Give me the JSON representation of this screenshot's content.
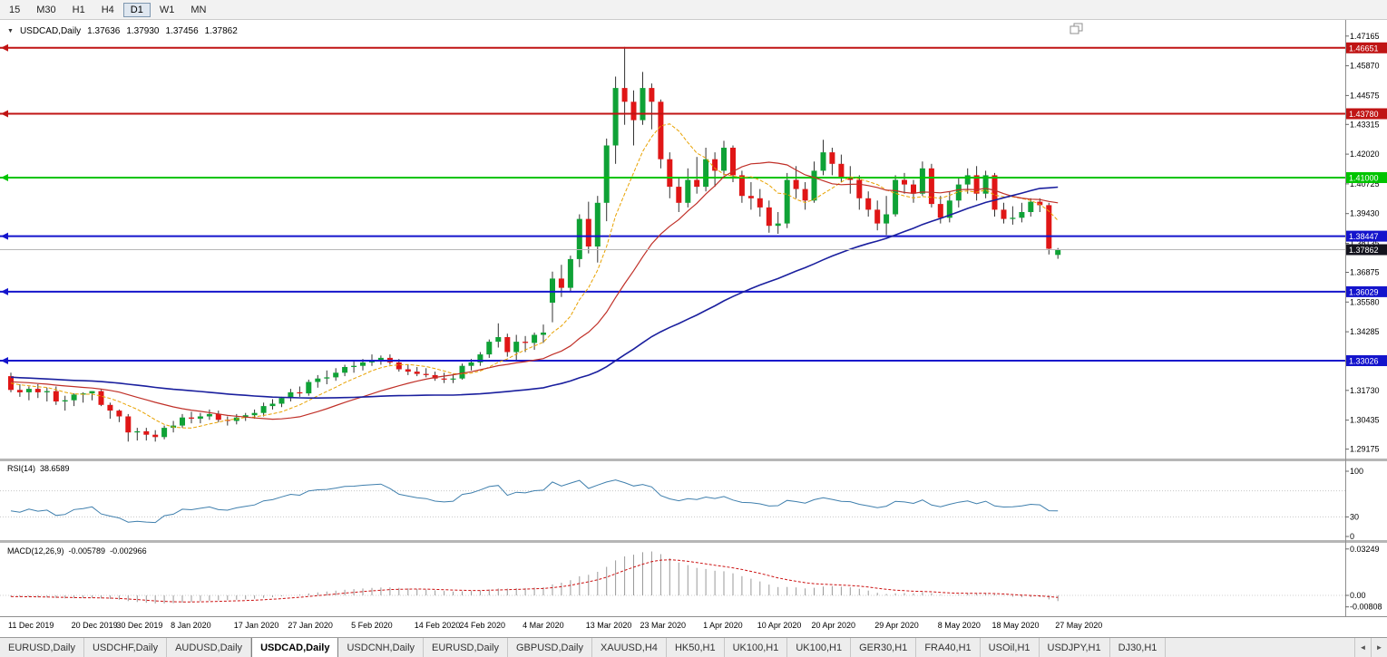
{
  "toolbar": {
    "timeframes": [
      {
        "label": "15",
        "active": false
      },
      {
        "label": "M30",
        "active": false
      },
      {
        "label": "H1",
        "active": false
      },
      {
        "label": "H4",
        "active": false
      },
      {
        "label": "D1",
        "active": true
      },
      {
        "label": "W1",
        "active": false
      },
      {
        "label": "MN",
        "active": false
      }
    ]
  },
  "icons": {
    "collapse_arrow": "▼",
    "tab_scroll_left": "◄",
    "tab_scroll_right": "►",
    "window_restore": "restore"
  },
  "chart": {
    "title": {
      "symbol": "USDCAD,Daily",
      "open": "1.37636",
      "high": "1.37930",
      "low": "1.37456",
      "close": "1.37862"
    },
    "colors": {
      "up": "#0fa236",
      "down": "#e01616",
      "wick": "#333333",
      "ma_fast": "#e8a200",
      "ma_mid": "#c03028",
      "ma_slow": "#1a1f9e"
    },
    "ma_periods": {
      "fast": 8,
      "mid": 20,
      "slow": 55
    },
    "y_axis_ticks": [
      "1.47165",
      "1.45870",
      "1.44575",
      "1.43315",
      "1.42020",
      "1.40725",
      "1.39430",
      "1.38135",
      "1.36875",
      "1.35580",
      "1.34285",
      "1.32990",
      "1.31730",
      "1.30435",
      "1.29175"
    ],
    "levels": [
      {
        "price": 1.46651,
        "label": "1.46651",
        "color": "#c01414"
      },
      {
        "price": 1.4378,
        "label": "1.43780",
        "color": "#c01414"
      },
      {
        "price": 1.41,
        "label": "1.41000",
        "color": "#00c400"
      },
      {
        "price": 1.38447,
        "label": "1.38447",
        "color": "#1414cc"
      },
      {
        "price": 1.36029,
        "label": "1.36029",
        "color": "#1414cc"
      },
      {
        "price": 1.33026,
        "label": "1.33026",
        "color": "#1414cc"
      }
    ],
    "current_price": {
      "value": 1.37862,
      "label": "1.37862",
      "line_color": "#b8b8b8",
      "badge_color": "#14141e"
    },
    "x_axis_labels": [
      {
        "label": "11 Dec 2019",
        "bar": 0
      },
      {
        "label": "20 Dec 2019",
        "bar": 7
      },
      {
        "label": "30 Dec 2019",
        "bar": 12
      },
      {
        "label": "8 Jan 2020",
        "bar": 18
      },
      {
        "label": "17 Jan 2020",
        "bar": 25
      },
      {
        "label": "27 Jan 2020",
        "bar": 31
      },
      {
        "label": "5 Feb 2020",
        "bar": 38
      },
      {
        "label": "14 Feb 2020",
        "bar": 45
      },
      {
        "label": "24 Feb 2020",
        "bar": 50
      },
      {
        "label": "4 Mar 2020",
        "bar": 57
      },
      {
        "label": "13 Mar 2020",
        "bar": 64
      },
      {
        "label": "23 Mar 2020",
        "bar": 70
      },
      {
        "label": "1 Apr 2020",
        "bar": 77
      },
      {
        "label": "10 Apr 2020",
        "bar": 83
      },
      {
        "label": "20 Apr 2020",
        "bar": 89
      },
      {
        "label": "29 Apr 2020",
        "bar": 96
      },
      {
        "label": "8 May 2020",
        "bar": 103
      },
      {
        "label": "18 May 2020",
        "bar": 109
      },
      {
        "label": "27 May 2020",
        "bar": 116
      }
    ],
    "pre_closes": [
      1.33,
      1.3285,
      1.327,
      1.328,
      1.3265,
      1.325,
      1.326,
      1.3245,
      1.323,
      1.324,
      1.3255,
      1.327,
      1.326,
      1.3245,
      1.3235,
      1.3225,
      1.324,
      1.325,
      1.3235,
      1.322,
      1.323,
      1.3245,
      1.326,
      1.325,
      1.324,
      1.3225,
      1.3215,
      1.323,
      1.3245,
      1.3235,
      1.322,
      1.321,
      1.3225,
      1.324,
      1.323,
      1.3215,
      1.3205,
      1.322,
      1.3235,
      1.3225,
      1.321,
      1.32,
      1.3215,
      1.323,
      1.322,
      1.3205,
      1.3195,
      1.321,
      1.3225,
      1.3215,
      1.32,
      1.319,
      1.3205,
      1.322,
      1.321
    ],
    "candles": [
      [
        1.3235,
        1.325,
        1.3165,
        1.3175
      ],
      [
        1.3175,
        1.32,
        1.3145,
        1.3165
      ],
      [
        1.3165,
        1.319,
        1.313,
        1.318
      ],
      [
        1.318,
        1.32,
        1.314,
        1.3165
      ],
      [
        1.3165,
        1.3185,
        1.3125,
        1.317
      ],
      [
        1.317,
        1.319,
        1.311,
        1.3125
      ],
      [
        1.3125,
        1.315,
        1.3085,
        1.313
      ],
      [
        1.313,
        1.316,
        1.3105,
        1.3155
      ],
      [
        1.3155,
        1.3165,
        1.312,
        1.316
      ],
      [
        1.316,
        1.317,
        1.313,
        1.317
      ],
      [
        1.317,
        1.3175,
        1.3105,
        1.311
      ],
      [
        1.311,
        1.312,
        1.305,
        1.3085
      ],
      [
        1.3085,
        1.309,
        1.3035,
        1.306
      ],
      [
        1.306,
        1.307,
        1.295,
        1.299
      ],
      [
        1.299,
        1.301,
        1.2955,
        1.2995
      ],
      [
        1.2995,
        1.301,
        1.2955,
        1.298
      ],
      [
        1.298,
        1.3,
        1.295,
        1.297
      ],
      [
        1.297,
        1.302,
        1.296,
        1.301
      ],
      [
        1.301,
        1.304,
        1.299,
        1.302
      ],
      [
        1.302,
        1.307,
        1.301,
        1.3055
      ],
      [
        1.3055,
        1.308,
        1.303,
        1.305
      ],
      [
        1.305,
        1.3075,
        1.303,
        1.306
      ],
      [
        1.306,
        1.309,
        1.3045,
        1.307
      ],
      [
        1.307,
        1.3085,
        1.3035,
        1.3045
      ],
      [
        1.3045,
        1.306,
        1.302,
        1.304
      ],
      [
        1.304,
        1.307,
        1.3025,
        1.3055
      ],
      [
        1.3055,
        1.3075,
        1.304,
        1.3065
      ],
      [
        1.3065,
        1.309,
        1.305,
        1.3075
      ],
      [
        1.3075,
        1.312,
        1.306,
        1.3105
      ],
      [
        1.3105,
        1.3135,
        1.309,
        1.3115
      ],
      [
        1.3115,
        1.3145,
        1.31,
        1.314
      ],
      [
        1.314,
        1.318,
        1.3125,
        1.3165
      ],
      [
        1.3165,
        1.319,
        1.3145,
        1.316
      ],
      [
        1.316,
        1.322,
        1.315,
        1.321
      ],
      [
        1.321,
        1.324,
        1.3185,
        1.3225
      ],
      [
        1.3225,
        1.326,
        1.32,
        1.323
      ],
      [
        1.323,
        1.327,
        1.3215,
        1.325
      ],
      [
        1.325,
        1.3285,
        1.3235,
        1.3275
      ],
      [
        1.3275,
        1.33,
        1.325,
        1.328
      ],
      [
        1.328,
        1.331,
        1.326,
        1.3295
      ],
      [
        1.3295,
        1.333,
        1.328,
        1.3305
      ],
      [
        1.3305,
        1.3325,
        1.3285,
        1.3315
      ],
      [
        1.3315,
        1.333,
        1.3285,
        1.3295
      ],
      [
        1.3295,
        1.331,
        1.3255,
        1.3265
      ],
      [
        1.3265,
        1.3285,
        1.324,
        1.3255
      ],
      [
        1.3255,
        1.3275,
        1.3235,
        1.3245
      ],
      [
        1.3245,
        1.327,
        1.323,
        1.324
      ],
      [
        1.324,
        1.3255,
        1.3215,
        1.3225
      ],
      [
        1.3225,
        1.325,
        1.3205,
        1.322
      ],
      [
        1.322,
        1.3245,
        1.3205,
        1.3225
      ],
      [
        1.3225,
        1.329,
        1.322,
        1.328
      ],
      [
        1.328,
        1.331,
        1.326,
        1.3295
      ],
      [
        1.3295,
        1.334,
        1.328,
        1.333
      ],
      [
        1.333,
        1.3395,
        1.3315,
        1.3385
      ],
      [
        1.3385,
        1.3465,
        1.336,
        1.3405
      ],
      [
        1.3405,
        1.342,
        1.332,
        1.334
      ],
      [
        1.334,
        1.3415,
        1.3305,
        1.3385
      ],
      [
        1.3385,
        1.341,
        1.334,
        1.338
      ],
      [
        1.338,
        1.3425,
        1.335,
        1.3415
      ],
      [
        1.3415,
        1.346,
        1.338,
        1.3425
      ],
      [
        1.3555,
        1.369,
        1.347,
        1.366
      ],
      [
        1.366,
        1.372,
        1.358,
        1.362
      ],
      [
        1.362,
        1.376,
        1.36,
        1.3745
      ],
      [
        1.3745,
        1.394,
        1.371,
        1.392
      ],
      [
        1.392,
        1.3995,
        1.377,
        1.38
      ],
      [
        1.38,
        1.402,
        1.373,
        1.399
      ],
      [
        1.399,
        1.427,
        1.391,
        1.424
      ],
      [
        1.424,
        1.454,
        1.416,
        1.449
      ],
      [
        1.449,
        1.4669,
        1.433,
        1.443
      ],
      [
        1.443,
        1.448,
        1.424,
        1.435
      ],
      [
        1.435,
        1.456,
        1.433,
        1.449
      ],
      [
        1.449,
        1.451,
        1.431,
        1.443
      ],
      [
        1.443,
        1.444,
        1.414,
        1.418
      ],
      [
        1.418,
        1.421,
        1.401,
        1.406
      ],
      [
        1.406,
        1.41,
        1.395,
        1.399
      ],
      [
        1.399,
        1.414,
        1.397,
        1.409
      ],
      [
        1.409,
        1.419,
        1.403,
        1.406
      ],
      [
        1.406,
        1.423,
        1.404,
        1.418
      ],
      [
        1.418,
        1.421,
        1.406,
        1.413
      ],
      [
        1.413,
        1.426,
        1.411,
        1.423
      ],
      [
        1.423,
        1.424,
        1.408,
        1.411
      ],
      [
        1.411,
        1.413,
        1.399,
        1.402
      ],
      [
        1.402,
        1.408,
        1.396,
        1.401
      ],
      [
        1.401,
        1.405,
        1.393,
        1.397
      ],
      [
        1.397,
        1.4,
        1.386,
        1.389
      ],
      [
        1.389,
        1.395,
        1.3855,
        1.39
      ],
      [
        1.39,
        1.412,
        1.388,
        1.409
      ],
      [
        1.409,
        1.415,
        1.401,
        1.405
      ],
      [
        1.405,
        1.408,
        1.396,
        1.4
      ],
      [
        1.4,
        1.417,
        1.399,
        1.413
      ],
      [
        1.413,
        1.4265,
        1.411,
        1.421
      ],
      [
        1.421,
        1.423,
        1.411,
        1.416
      ],
      [
        1.416,
        1.42,
        1.408,
        1.41
      ],
      [
        1.41,
        1.415,
        1.403,
        1.409
      ],
      [
        1.409,
        1.411,
        1.396,
        1.401
      ],
      [
        1.401,
        1.404,
        1.393,
        1.396
      ],
      [
        1.396,
        1.4,
        1.387,
        1.39
      ],
      [
        1.39,
        1.402,
        1.385,
        1.394
      ],
      [
        1.394,
        1.411,
        1.393,
        1.409
      ],
      [
        1.409,
        1.412,
        1.403,
        1.407
      ],
      [
        1.407,
        1.409,
        1.399,
        1.403
      ],
      [
        1.403,
        1.417,
        1.402,
        1.414
      ],
      [
        1.414,
        1.416,
        1.397,
        1.3985
      ],
      [
        1.3985,
        1.402,
        1.39,
        1.3925
      ],
      [
        1.3925,
        1.404,
        1.3905,
        1.4
      ],
      [
        1.4,
        1.41,
        1.397,
        1.407
      ],
      [
        1.407,
        1.414,
        1.403,
        1.411
      ],
      [
        1.411,
        1.415,
        1.4,
        1.403
      ],
      [
        1.403,
        1.413,
        1.401,
        1.411
      ],
      [
        1.411,
        1.412,
        1.393,
        1.396
      ],
      [
        1.396,
        1.399,
        1.39,
        1.392
      ],
      [
        1.392,
        1.3975,
        1.3895,
        1.3925
      ],
      [
        1.3925,
        1.399,
        1.3905,
        1.395
      ],
      [
        1.395,
        1.401,
        1.393,
        1.3995
      ],
      [
        1.3995,
        1.401,
        1.395,
        1.398
      ],
      [
        1.398,
        1.399,
        1.3765,
        1.379
      ],
      [
        1.3763,
        1.3793,
        1.3746,
        1.3786
      ]
    ]
  },
  "rsi": {
    "name": "RSI(14)",
    "value": "38.6589",
    "line_color": "#3f7fad",
    "levels": [
      {
        "label": "100",
        "value": 100
      },
      {
        "label": "30",
        "value": 30
      },
      {
        "label": "0",
        "value": 0
      }
    ],
    "dotted_levels": [
      70,
      30
    ]
  },
  "macd": {
    "name": "MACD(12,26,9)",
    "value": "-0.005789",
    "signal": "-0.002966",
    "histogram_color": "#9a9a9a",
    "signal_color": "#cc1111",
    "axis_labels": [
      {
        "label": "0.03249",
        "value": 0.03249
      },
      {
        "label": "0.00",
        "value": 0
      },
      {
        "label": "-0.00808",
        "value": -0.00808
      }
    ]
  },
  "tabs": {
    "active_index": 3,
    "items": [
      "EURUSD,Daily",
      "USDCHF,Daily",
      "AUDUSD,Daily",
      "USDCAD,Daily",
      "USDCNH,Daily",
      "EURUSD,Daily",
      "GBPUSD,Daily",
      "XAUUSD,H4",
      "HK50,H1",
      "UK100,H1",
      "UK100,H1",
      "GER30,H1",
      "FRA40,H1",
      "USOil,H1",
      "USDJPY,H1",
      "DJ30,H1"
    ]
  }
}
